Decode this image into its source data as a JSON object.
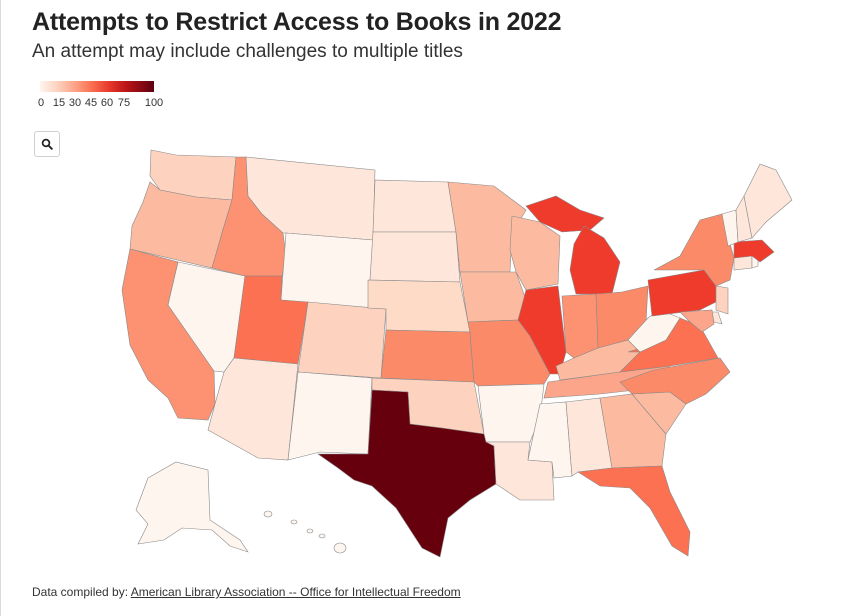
{
  "title": "Attempts to Restrict Access to Books in 2022",
  "subtitle": "An attempt may include challenges to multiple titles",
  "legend": {
    "ticks": [
      "0",
      "15",
      "30",
      "45",
      "60",
      "75",
      "100"
    ],
    "min": 0,
    "max": 100,
    "colors": [
      "#fff5ef",
      "#fdd3bf",
      "#fca58a",
      "#fb7152",
      "#e83b2c",
      "#bd1517",
      "#5f0010"
    ]
  },
  "search": {
    "icon": "search-icon"
  },
  "footer": {
    "prefix": "Data compiled by: ",
    "link": "American Library Association -- Office for Intellectual Freedom"
  }
}
